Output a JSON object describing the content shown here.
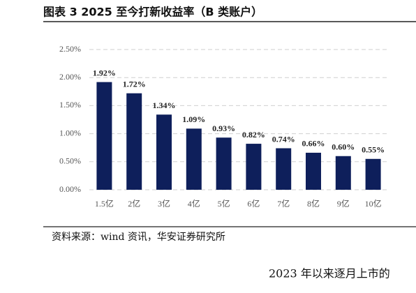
{
  "chart_data": {
    "type": "bar",
    "title": "图表 3 2025 至今打新收益率（B 类账户）",
    "categories": [
      "1.5亿",
      "2亿",
      "3亿",
      "4亿",
      "5亿",
      "6亿",
      "7亿",
      "8亿",
      "9亿",
      "10亿"
    ],
    "values": [
      1.92,
      1.72,
      1.34,
      1.09,
      0.93,
      0.82,
      0.74,
      0.66,
      0.6,
      0.55
    ],
    "value_labels": [
      "1.92%",
      "1.72%",
      "1.34%",
      "1.09%",
      "0.93%",
      "0.82%",
      "0.74%",
      "0.66%",
      "0.60%",
      "0.55%"
    ],
    "color": "#0e1f5b",
    "ylim": [
      0,
      2.5
    ],
    "yticks": [
      {
        "value": 0,
        "label": "0.00%"
      },
      {
        "value": 0.5,
        "label": "0.50%"
      },
      {
        "value": 1,
        "label": "1.00%"
      },
      {
        "value": 1.5,
        "label": "1.50%"
      },
      {
        "value": 2,
        "label": "2.00%"
      },
      {
        "value": 2.5,
        "label": "2.50%"
      }
    ],
    "grid": true
  },
  "source": "资料来源：wind 资讯，华安证券研究所",
  "body_text": "2023 年以来逐月上市的"
}
